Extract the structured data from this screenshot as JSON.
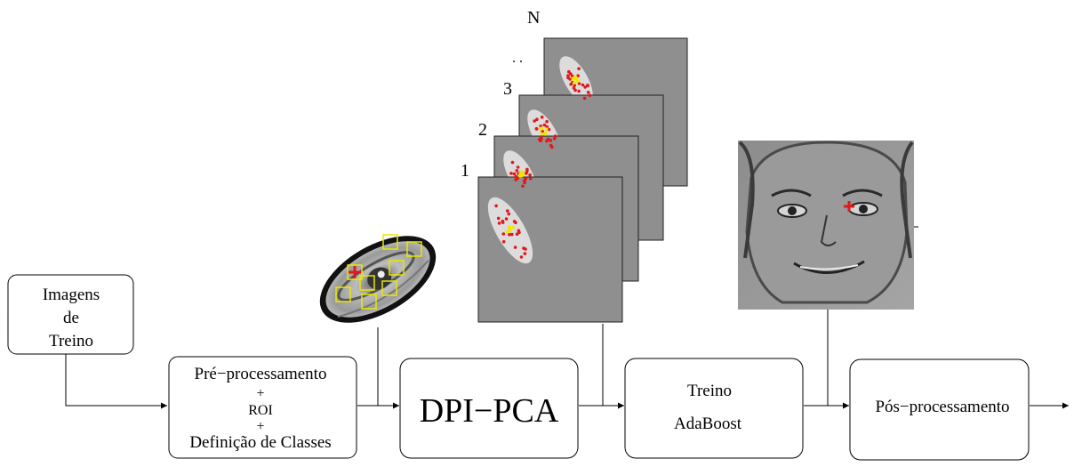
{
  "boxes": {
    "training_images": {
      "lines": [
        "Imagens",
        "de",
        "Treino"
      ]
    },
    "preprocessing": {
      "lines": [
        "Pré−processamento",
        "+",
        "ROI",
        "+",
        "Definição de Classes"
      ]
    },
    "dpi_pca": {
      "label": "DPI−PCA"
    },
    "training": {
      "lines": [
        "Treino",
        "AdaBoost"
      ]
    },
    "postprocessing": {
      "label": "Pós−processamento"
    }
  },
  "stack_labels": {
    "n": "N",
    "ellipsis": ". .",
    "three": "3",
    "two": "2",
    "one": "1"
  },
  "colors": {
    "box_border": "#000000",
    "panel_gray": "#8f8f8f",
    "ellipse_fill": "#dcdcdc",
    "dot_red": "#e0191c",
    "dot_yellow": "#f2e600",
    "roi_box": "#e8e800"
  }
}
